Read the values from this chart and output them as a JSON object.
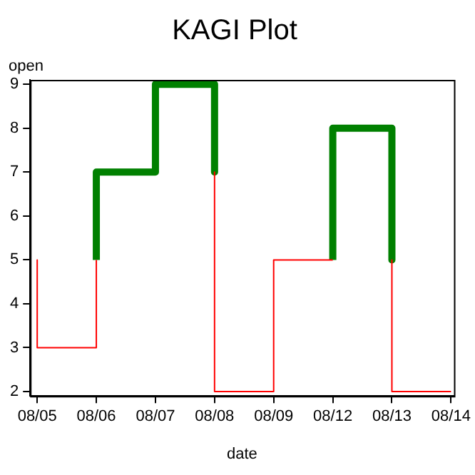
{
  "chart_data": {
    "type": "line",
    "title": "KAGI Plot",
    "xlabel": "date",
    "ylabel": "open",
    "categories": [
      "08/05",
      "08/06",
      "08/07",
      "08/08",
      "08/09",
      "08/12",
      "08/13",
      "08/14"
    ],
    "ylim": [
      1.9,
      9.1
    ],
    "yticks": [
      2,
      3,
      4,
      5,
      6,
      7,
      8,
      9
    ],
    "grid": false,
    "legend": false,
    "marker": "none",
    "line_style": "solid",
    "series": [
      {
        "color": "#ff0000",
        "x": [
          "08/05",
          "08/05",
          "08/06",
          "08/06",
          "08/06",
          "08/08",
          "08/08",
          "08/09",
          "08/09",
          "08/12",
          "08/12",
          "08/13",
          "08/13",
          "08/14"
        ],
        "values": [
          5,
          3,
          3,
          5,
          null,
          7,
          2,
          2,
          5,
          5,
          null,
          5,
          2,
          2
        ]
      },
      {
        "color": "#008000",
        "x": [
          "08/06",
          "08/06",
          "08/07",
          "08/07",
          "08/08",
          "08/08",
          "08/08",
          "08/12",
          "08/12",
          "08/13",
          "08/13"
        ],
        "values": [
          5,
          7,
          7,
          9,
          9,
          7,
          null,
          5,
          8,
          8,
          5
        ]
      }
    ]
  }
}
